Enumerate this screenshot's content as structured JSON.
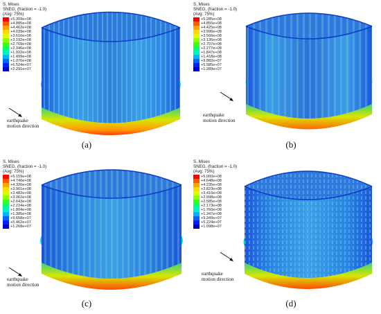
{
  "panels": [
    {
      "caption": "(a)",
      "legend": {
        "line1": "S, Mises",
        "line2": "SNEG, (fraction = -1.0)",
        "line3": "(Avg: 75%)",
        "ticks": [
          "+5.309e+08",
          "+4.885e+08",
          "+4.462e+08",
          "+4.039e+08",
          "+3.616e+08",
          "+3.192e+08",
          "+2.769e+08",
          "+2.346e+08",
          "+1.922e+08",
          "+1.499e+08",
          "+1.076e+08",
          "+6.524e+07",
          "+2.291e+07"
        ]
      },
      "note_line1": "earthquake",
      "note_line2": "motion direction"
    },
    {
      "caption": "(b)",
      "legend": {
        "line1": "S, Mises",
        "line2": "SNEG, (fraction = -1.0)",
        "line3": "(Avg: 75%)",
        "ticks": [
          "+5.285e+08",
          "+4.855e+08",
          "+4.425e+08",
          "+3.996e+08",
          "+3.566e+08",
          "+3.136e+08",
          "+2.707e+08",
          "+2.277e+08",
          "+1.847e+08",
          "+1.418e+08",
          "+9.882e+07",
          "+5.585e+07",
          "+1.289e+07"
        ]
      },
      "note_line1": "earthquake",
      "note_line2": "motion direction"
    },
    {
      "caption": "(c)",
      "legend": {
        "line1": "S, Mises",
        "line2": "SNEG, (fraction = -1.0)",
        "line3": "(Avg: 75%)",
        "ticks": [
          "+5.159e+08",
          "+4.740e+08",
          "+4.320e+08",
          "+3.901e+08",
          "+3.482e+08",
          "+3.062e+08",
          "+2.643e+08",
          "+2.224e+08",
          "+1.804e+08",
          "+1.385e+08",
          "+9.658e+07",
          "+5.462e+07",
          "+1.268e+07"
        ]
      },
      "note_line1": "earthquake",
      "note_line2": "motion direction"
    },
    {
      "caption": "(d)",
      "legend": {
        "line1": "S, Mises",
        "line2": "SNEG, (fraction = -1.0)",
        "line3": "(Avg: 75%)",
        "ticks": [
          "+5.060e+08",
          "+4.648e+08",
          "+4.235e+08",
          "+3.823e+08",
          "+3.410e+08",
          "+2.998e+08",
          "+2.585e+08",
          "+2.173e+08",
          "+1.760e+08",
          "+1.347e+08",
          "+9.349e+07",
          "+5.224e+07",
          "+1.098e+07"
        ]
      },
      "note_line1": "earthquake",
      "note_line2": "motion direction"
    }
  ],
  "colormap": [
    "#ff0000",
    "#ff5a00",
    "#ffa500",
    "#ffdc00",
    "#d7ff00",
    "#8cff00",
    "#3cff14",
    "#00ff78",
    "#00f0c8",
    "#00b4ff",
    "#0064ff",
    "#001eff",
    "#0000c8"
  ]
}
